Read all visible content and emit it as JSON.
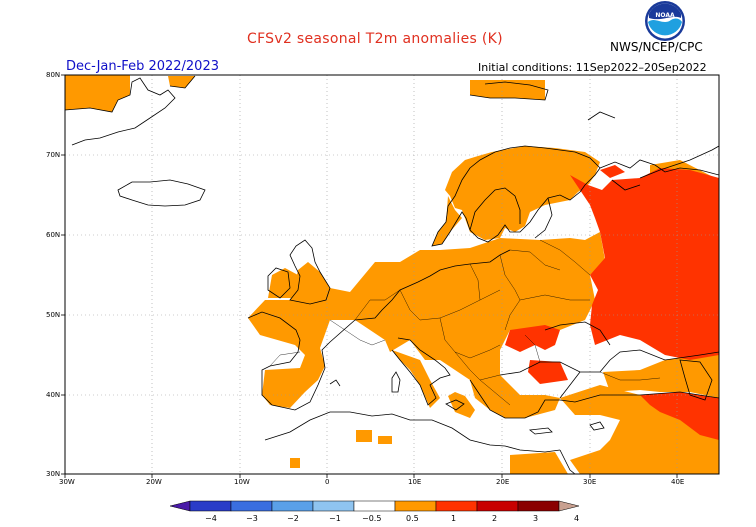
{
  "title": "CFSv2 seasonal T2m anomalies (K)",
  "season": "Dec-Jan-Feb 2022/2023",
  "initial_conditions": "Initial conditions: 11Sep2022–20Sep2022",
  "agency": "NWS/NCEP/CPC",
  "logo_text": "NOAA",
  "colors": {
    "title": "#e03020",
    "season": "#1010c8",
    "land_outline": "#000000",
    "grid": "#888888",
    "anom_0_5_to_1": "#ff9900",
    "anom_1_to_2": "#ff3300"
  },
  "map": {
    "lat_labels": [
      "80N",
      "70N",
      "60N",
      "50N",
      "40N",
      "30N"
    ],
    "lon_labels": [
      "30W",
      "20W",
      "10W",
      "0",
      "10E",
      "20E",
      "30E",
      "40E"
    ]
  },
  "colorbar": {
    "labels": [
      "−4",
      "−3",
      "−2",
      "−1",
      "−0.5",
      "0.5",
      "1",
      "2",
      "3",
      "4"
    ],
    "colors": [
      "#4a1aa8",
      "#2a3cc8",
      "#3a6ee0",
      "#5aa0e8",
      "#8fc4f0",
      "#ffffff",
      "#ff9900",
      "#ff3300",
      "#c80000",
      "#8a0000",
      "#c8a090"
    ]
  }
}
